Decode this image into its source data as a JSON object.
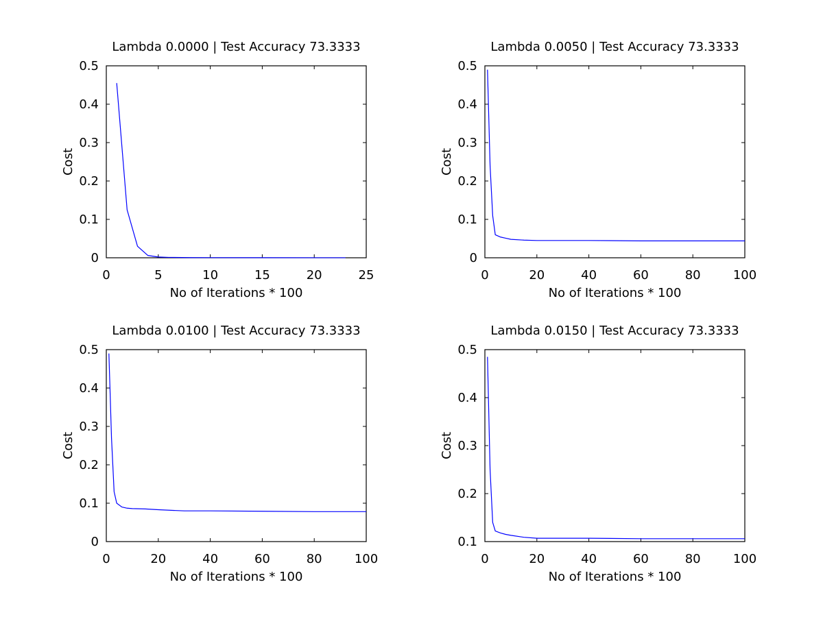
{
  "chart_data": [
    {
      "type": "line",
      "title": "Lambda 0.0000 | Test Accuracy 73.3333",
      "xlabel": "No of Iterations * 100",
      "ylabel": "Cost",
      "xlim": [
        0,
        25
      ],
      "ylim": [
        0,
        0.5
      ],
      "xticks": [
        "0",
        "5",
        "10",
        "15",
        "20",
        "25"
      ],
      "yticks": [
        "0",
        "0.1",
        "0.2",
        "0.3",
        "0.4",
        "0.5"
      ],
      "color": "#0000ff",
      "x": [
        1,
        2,
        3,
        4,
        5,
        6,
        8,
        10,
        15,
        20,
        23
      ],
      "y": [
        0.455,
        0.125,
        0.03,
        0.006,
        0.002,
        0.001,
        0.0005,
        0.0003,
        0.0002,
        0.0001,
        0.0001
      ]
    },
    {
      "type": "line",
      "title": "Lambda 0.0050 | Test Accuracy 73.3333",
      "xlabel": "No of Iterations * 100",
      "ylabel": "Cost",
      "xlim": [
        0,
        100
      ],
      "ylim": [
        0,
        0.5
      ],
      "xticks": [
        "0",
        "20",
        "40",
        "60",
        "80",
        "100"
      ],
      "yticks": [
        "0",
        "0.1",
        "0.2",
        "0.3",
        "0.4",
        "0.5"
      ],
      "color": "#0000ff",
      "x": [
        1,
        2,
        3,
        4,
        6,
        8,
        10,
        15,
        20,
        30,
        40,
        60,
        80,
        100
      ],
      "y": [
        0.49,
        0.24,
        0.11,
        0.06,
        0.054,
        0.051,
        0.048,
        0.046,
        0.045,
        0.045,
        0.045,
        0.044,
        0.044,
        0.044
      ]
    },
    {
      "type": "line",
      "title": "Lambda 0.0100 | Test Accuracy 73.3333",
      "xlabel": "No of Iterations * 100",
      "ylabel": "Cost",
      "xlim": [
        0,
        100
      ],
      "ylim": [
        0,
        0.5
      ],
      "xticks": [
        "0",
        "20",
        "40",
        "60",
        "80",
        "100"
      ],
      "yticks": [
        "0",
        "0.1",
        "0.2",
        "0.3",
        "0.4",
        "0.5"
      ],
      "color": "#0000ff",
      "x": [
        1,
        2,
        3,
        4,
        6,
        8,
        10,
        15,
        20,
        30,
        40,
        60,
        80,
        100
      ],
      "y": [
        0.49,
        0.27,
        0.13,
        0.1,
        0.09,
        0.087,
        0.086,
        0.085,
        0.083,
        0.08,
        0.08,
        0.079,
        0.078,
        0.078
      ]
    },
    {
      "type": "line",
      "title": "Lambda 0.0150 | Test Accuracy 73.3333",
      "xlabel": "No of Iterations * 100",
      "ylabel": "Cost",
      "xlim": [
        0,
        100
      ],
      "ylim": [
        0.1,
        0.5
      ],
      "xticks": [
        "0",
        "20",
        "40",
        "60",
        "80",
        "100"
      ],
      "yticks": [
        "0.1",
        "0.2",
        "0.3",
        "0.4",
        "0.5"
      ],
      "color": "#0000ff",
      "x": [
        1,
        2,
        3,
        4,
        6,
        8,
        10,
        15,
        20,
        30,
        40,
        60,
        80,
        100
      ],
      "y": [
        0.485,
        0.25,
        0.14,
        0.122,
        0.118,
        0.115,
        0.113,
        0.109,
        0.107,
        0.107,
        0.107,
        0.106,
        0.106,
        0.106
      ]
    }
  ]
}
